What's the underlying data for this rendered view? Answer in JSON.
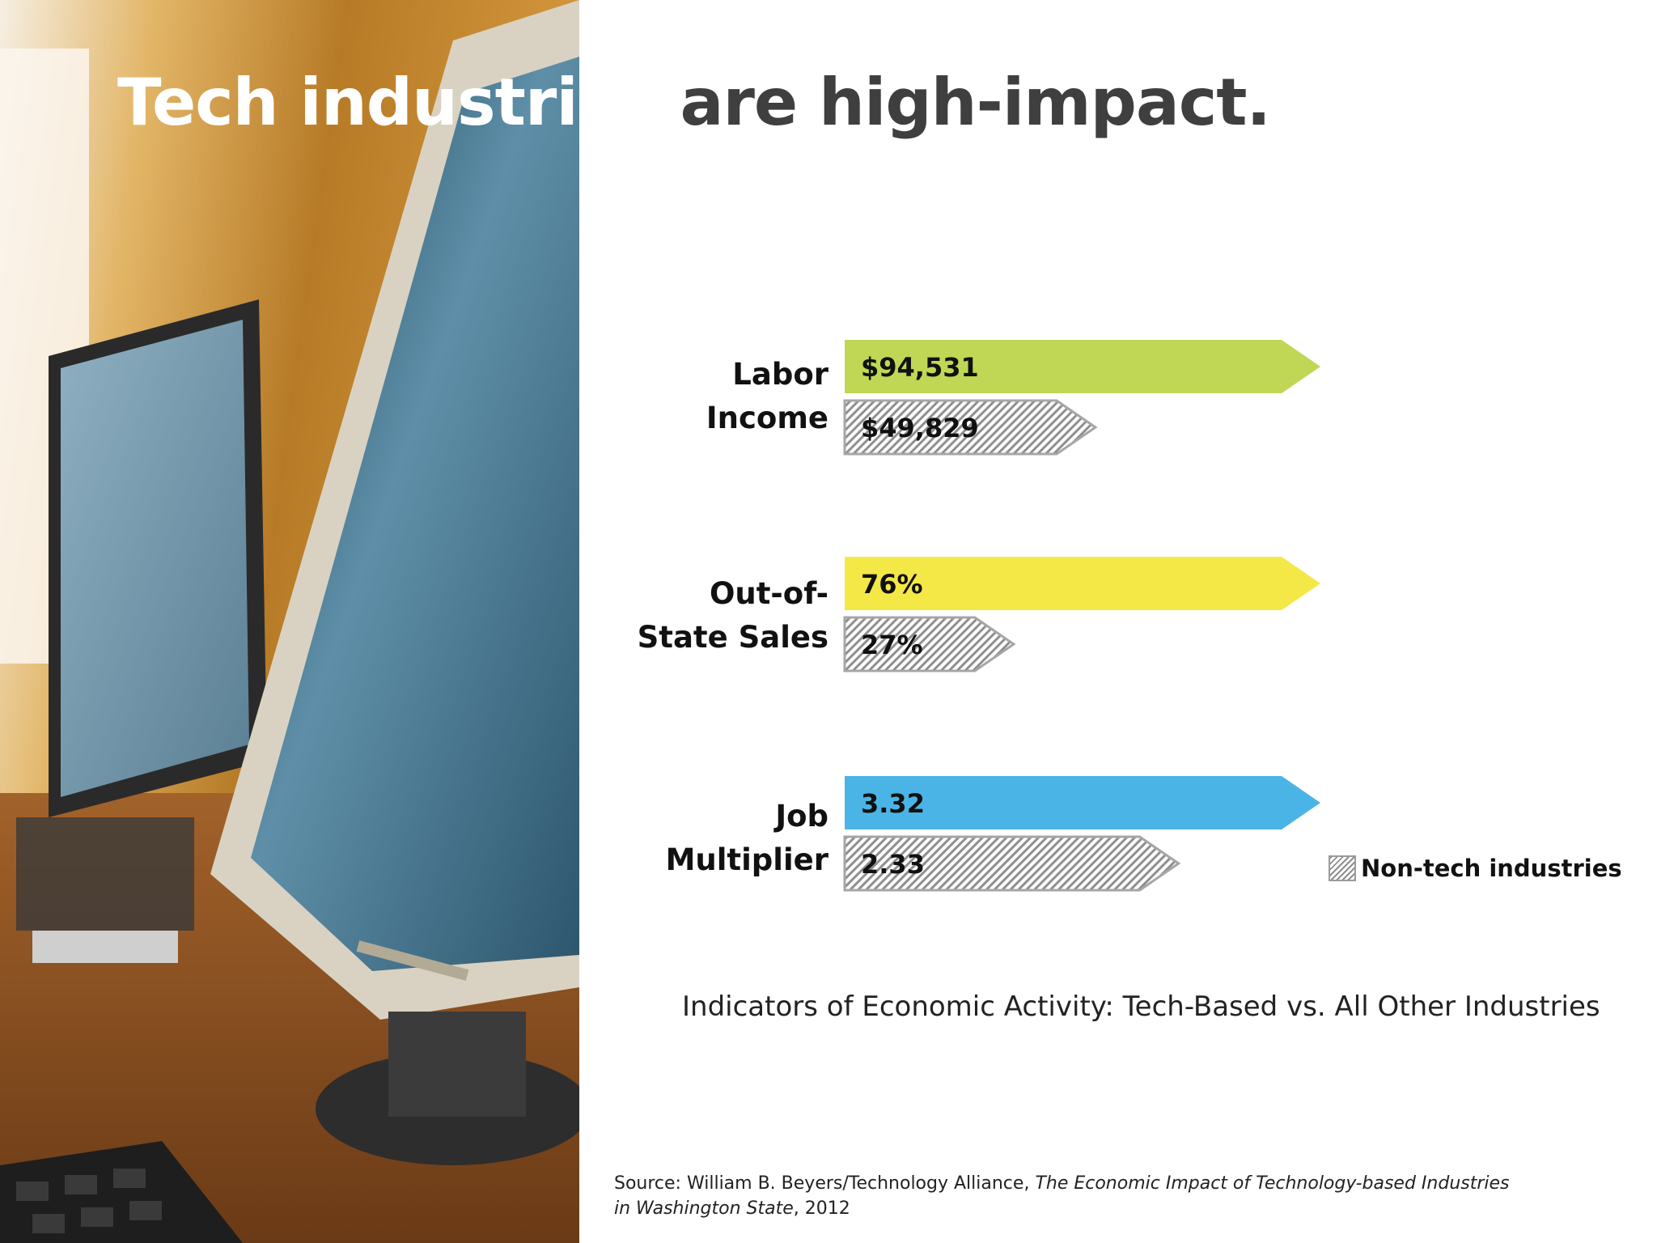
{
  "slide": {
    "title_part_white": "Tech industries",
    "title_part_dark": " are high-impact.",
    "subtitle": "Indicators of Economic Activity: Tech-Based vs. All Other Industries",
    "source_prefix": "Source:  William B. Beyers/Technology Alliance, ",
    "source_italic_1": "The Economic Impact of Technology-based Industries",
    "source_italic_2": "in Washington State",
    "source_suffix": ", 2012",
    "photo_icon": "computer-monitors-photo"
  },
  "chart_data": {
    "type": "bar",
    "orientation": "horizontal",
    "title": "Indicators of Economic Activity: Tech-Based vs. All Other Industries",
    "grid": false,
    "legend_placement": "bottom-right",
    "categories": [
      {
        "line1": "Labor",
        "line2": "Income"
      },
      {
        "line1": "Out-of-",
        "line2": "State Sales"
      },
      {
        "line1": "Job",
        "line2": "Multiplier"
      }
    ],
    "tech": [
      {
        "value": 94531,
        "label": "$94,531",
        "color": "#c0d755"
      },
      {
        "value": 76,
        "label": "76%",
        "color": "#f4e846"
      },
      {
        "value": 3.32,
        "label": "3.32",
        "color": "#4ab4e6"
      }
    ],
    "nontech": [
      {
        "value": 49829,
        "label": "$49,829"
      },
      {
        "value": 27,
        "label": "27%"
      },
      {
        "value": 2.33,
        "label": "2.33"
      }
    ],
    "nontech_style": {
      "fill": "hatched",
      "stroke": "#a6a6a6"
    },
    "legend": [
      {
        "label": "Non-tech industries"
      }
    ]
  }
}
